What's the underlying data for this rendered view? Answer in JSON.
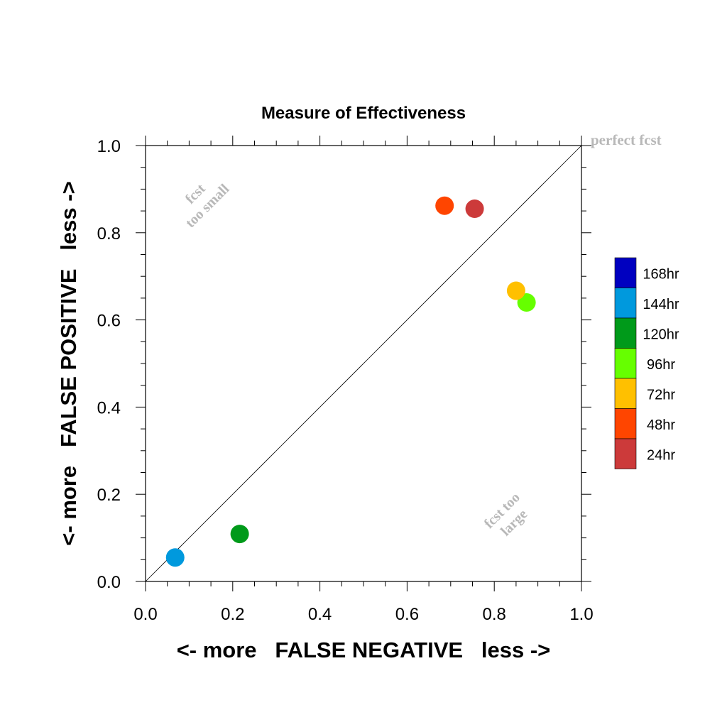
{
  "chart_data": {
    "type": "scatter",
    "title": "Measure of Effectiveness",
    "xlabel": "<- more   FALSE NEGATIVE   less ->",
    "ylabel": "<- more   FALSE POSITIVE   less ->",
    "xlim": [
      0,
      1
    ],
    "ylim": [
      0,
      1
    ],
    "xticks": [
      "0.0",
      "0.2",
      "0.4",
      "0.6",
      "0.8",
      "1.0"
    ],
    "yticks": [
      "0.0",
      "0.2",
      "0.4",
      "0.6",
      "0.8",
      "1.0"
    ],
    "grid": false,
    "diagonal_line": true,
    "annotations": {
      "perfect": "perfect fcst",
      "too_small": [
        "fcst",
        "too small"
      ],
      "too_large": [
        "fcst too",
        "large"
      ]
    },
    "legend_placement": "right",
    "series": [
      {
        "name": "168hr",
        "color": "#0000c0",
        "x": null,
        "y": null
      },
      {
        "name": "144hr",
        "color": "#0099dd",
        "x": 0.068,
        "y": 0.055
      },
      {
        "name": "120hr",
        "color": "#009a1a",
        "x": 0.216,
        "y": 0.109
      },
      {
        "name": "96hr",
        "color": "#66ff00",
        "x": 0.874,
        "y": 0.64
      },
      {
        "name": "72hr",
        "color": "#ffc000",
        "x": 0.85,
        "y": 0.667
      },
      {
        "name": "48hr",
        "color": "#ff4500",
        "x": 0.686,
        "y": 0.862
      },
      {
        "name": "24hr",
        "color": "#cc3a3a",
        "x": 0.755,
        "y": 0.855
      }
    ]
  }
}
